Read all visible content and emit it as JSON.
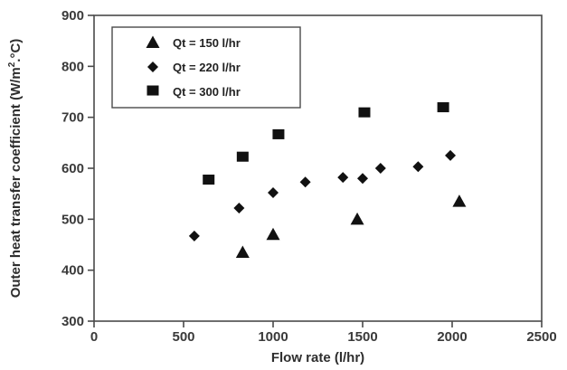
{
  "chart_data": {
    "type": "scatter",
    "title": "",
    "xlabel": "Flow rate (l/hr)",
    "ylabel_main": "Outer heat transfer coefficient (W/m",
    "ylabel_sup": "2",
    "ylabel_end": ".°C)",
    "xlim": [
      0,
      2500
    ],
    "ylim": [
      300,
      900
    ],
    "xticks": [
      0,
      500,
      1000,
      1500,
      2000,
      2500
    ],
    "yticks": [
      300,
      400,
      500,
      600,
      700,
      800,
      900
    ],
    "grid": false,
    "legend_position": "top-left",
    "series": [
      {
        "name": "Qt = 150 l/hr",
        "marker": "triangle",
        "color": "#111111",
        "points": [
          {
            "x": 830,
            "y": 435
          },
          {
            "x": 1000,
            "y": 470
          },
          {
            "x": 1470,
            "y": 500
          },
          {
            "x": 2040,
            "y": 535
          }
        ]
      },
      {
        "name": "Qt = 220 l/hr",
        "marker": "diamond",
        "color": "#111111",
        "points": [
          {
            "x": 560,
            "y": 467
          },
          {
            "x": 810,
            "y": 522
          },
          {
            "x": 1000,
            "y": 552
          },
          {
            "x": 1180,
            "y": 573
          },
          {
            "x": 1390,
            "y": 582
          },
          {
            "x": 1500,
            "y": 580
          },
          {
            "x": 1600,
            "y": 600
          },
          {
            "x": 1810,
            "y": 603
          },
          {
            "x": 1990,
            "y": 625
          }
        ]
      },
      {
        "name": "Qt = 300 l/hr",
        "marker": "square",
        "color": "#111111",
        "points": [
          {
            "x": 640,
            "y": 576
          },
          {
            "x": 830,
            "y": 621
          },
          {
            "x": 1030,
            "y": 665
          },
          {
            "x": 1510,
            "y": 708
          },
          {
            "x": 1950,
            "y": 718
          }
        ]
      }
    ]
  }
}
